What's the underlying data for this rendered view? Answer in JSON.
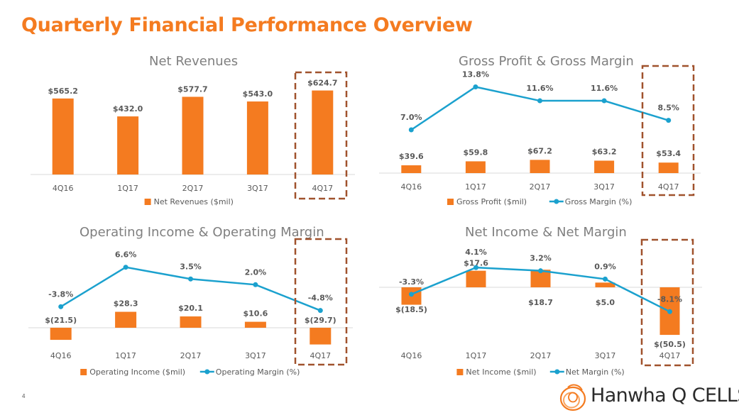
{
  "page_title": "Quarterly Financial Performance Overview",
  "page_number": "4",
  "logo_text": "Hanwha Q CELLS",
  "colors": {
    "title": "#F47B20",
    "bar": "#F47B20",
    "line": "#1BA1CE",
    "highlight_box": "#A0522D",
    "axis": "#D9D9D9"
  },
  "highlight_category": "4Q17",
  "chart_data": [
    {
      "type": "bar",
      "title": "Net Revenues",
      "categories": [
        "4Q16",
        "1Q17",
        "2Q17",
        "3Q17",
        "4Q17"
      ],
      "series": [
        {
          "name": "Net Revenues ($mil)",
          "values": [
            565.2,
            432.0,
            577.7,
            543.0,
            624.7
          ],
          "labels": [
            "$565.2",
            "$432.0",
            "$577.7",
            "$543.0",
            "$624.7"
          ]
        }
      ],
      "legend": "bottom",
      "grid": false
    },
    {
      "type": "bar",
      "title": "Gross Profit & Gross Margin",
      "categories": [
        "4Q16",
        "1Q17",
        "2Q17",
        "3Q17",
        "4Q17"
      ],
      "series": [
        {
          "name": "Gross Profit ($mil)",
          "values": [
            39.6,
            59.8,
            67.2,
            63.2,
            53.4
          ],
          "labels": [
            "$39.6",
            "$59.8",
            "$67.2",
            "$63.2",
            "$53.4"
          ]
        }
      ],
      "line_series": [
        {
          "name": "Gross Margin (%)",
          "values": [
            7.0,
            13.8,
            11.6,
            11.6,
            8.5
          ],
          "labels": [
            "7.0%",
            "13.8%",
            "11.6%",
            "11.6%",
            "8.5%"
          ]
        }
      ],
      "legend": "bottom",
      "grid": false
    },
    {
      "type": "bar",
      "title": "Operating Income & Operating Margin",
      "categories": [
        "4Q16",
        "1Q17",
        "2Q17",
        "3Q17",
        "4Q17"
      ],
      "series": [
        {
          "name": "Operating Income ($mil)",
          "values": [
            -21.5,
            28.3,
            20.1,
            10.6,
            -29.7
          ],
          "labels": [
            "$(21.5)",
            "$28.3",
            "$20.1",
            "$10.6",
            "$(29.7)"
          ]
        }
      ],
      "line_series": [
        {
          "name": "Operating Margin (%)",
          "values": [
            -3.8,
            6.6,
            3.5,
            2.0,
            -4.8
          ],
          "labels": [
            "-3.8%",
            "6.6%",
            "3.5%",
            "2.0%",
            "-4.8%"
          ]
        }
      ],
      "legend": "bottom",
      "grid": false
    },
    {
      "type": "bar",
      "title": "Net Income & Net Margin",
      "categories": [
        "4Q16",
        "1Q17",
        "2Q17",
        "3Q17",
        "4Q17"
      ],
      "series": [
        {
          "name": "Net Income ($mil)",
          "values": [
            -18.5,
            17.6,
            18.7,
            5.0,
            -50.5
          ],
          "labels": [
            "$(18.5)",
            "$17.6",
            "$18.7",
            "$5.0",
            "$(50.5)"
          ]
        }
      ],
      "line_series": [
        {
          "name": "Net Margin (%)",
          "values": [
            -3.3,
            4.1,
            3.2,
            0.9,
            -8.1
          ],
          "labels": [
            "-3.3%",
            "4.1%",
            "3.2%",
            "0.9%",
            "-8.1%"
          ]
        }
      ],
      "legend": "bottom",
      "grid": false
    }
  ]
}
